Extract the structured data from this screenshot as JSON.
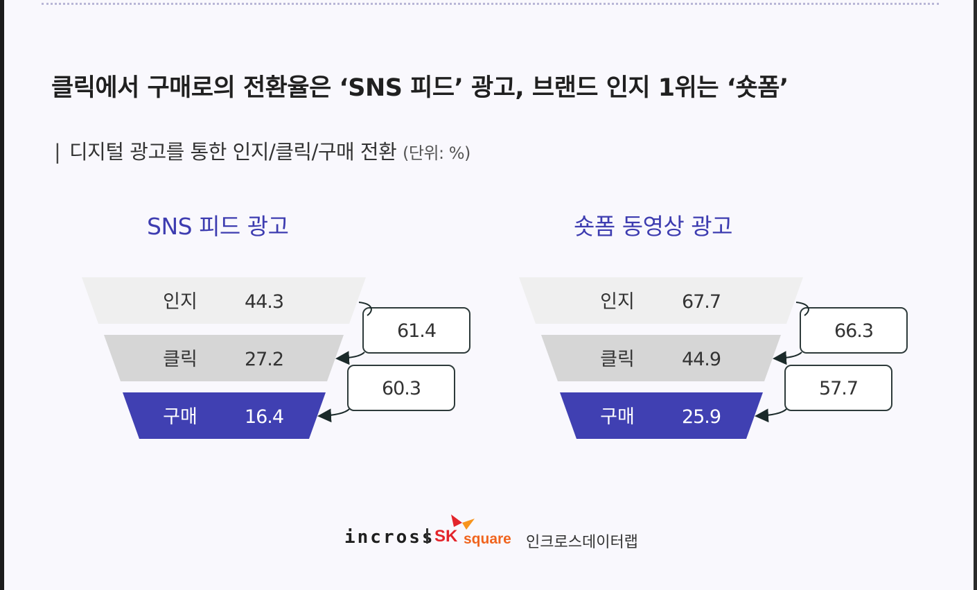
{
  "header": {
    "title": "클릭에서 구매로의 전환율은 ‘SNS 피드’ 광고, 브랜드 인지 1위는 ‘숏폼’",
    "subtitle_bar": "|",
    "subtitle": "디지털 광고를 통한 인지/클릭/구매 전환",
    "subtitle_unit": "(단위: %)"
  },
  "colors": {
    "accent": "#3d3cb0",
    "stage1": "#efefef",
    "stage2": "#d6d6d6",
    "stage3": "#4040b2",
    "box_border": "#2d3a3a"
  },
  "footer": {
    "brand": "incross",
    "sk": "SK",
    "square": "square",
    "lab": "인크로스데이터랩"
  },
  "chart_data": [
    {
      "type": "funnel",
      "title": "SNS 피드 광고",
      "stages": [
        {
          "label": "인지",
          "value": "44.3"
        },
        {
          "label": "클릭",
          "value": "27.2"
        },
        {
          "label": "구매",
          "value": "16.4"
        }
      ],
      "conversions": [
        "61.4",
        "60.3"
      ]
    },
    {
      "type": "funnel",
      "title": "숏폼 동영상 광고",
      "stages": [
        {
          "label": "인지",
          "value": "67.7"
        },
        {
          "label": "클릭",
          "value": "44.9"
        },
        {
          "label": "구매",
          "value": "25.9"
        }
      ],
      "conversions": [
        "66.3",
        "57.7"
      ]
    }
  ]
}
